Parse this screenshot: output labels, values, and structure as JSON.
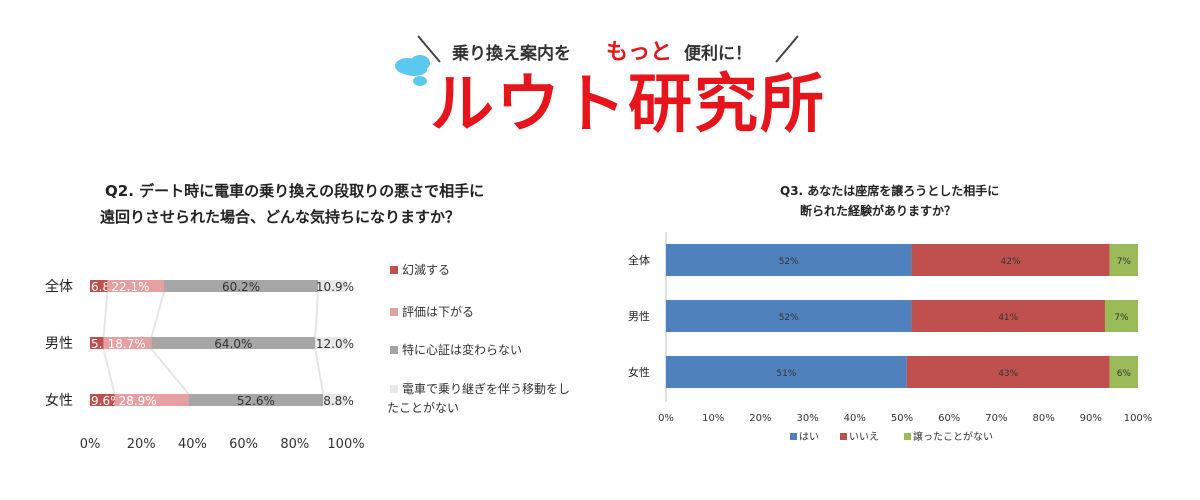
{
  "header": {
    "tagline_before": "乗り換え案内を",
    "tagline_emphasis": "もっと",
    "tagline_after": "便利に！",
    "logo": "ルウト研究所",
    "colors": {
      "brand_red": "#e8141c",
      "cloud_blue": "#5bc8f0"
    }
  },
  "chart_data": [
    {
      "type": "bar",
      "orientation": "horizontal-stacked",
      "title_line1": "Q2.  デート時に電車の乗り換えの段取りの悪さで相手に",
      "title_line2": "遠回りさせられた場合、どんな気持ちになりますか？",
      "categories": [
        "全体",
        "男性",
        "女性"
      ],
      "xlim": [
        0,
        100
      ],
      "xticks": [
        "0%",
        "20%",
        "40%",
        "60%",
        "80%",
        "100%"
      ],
      "legend_position": "right",
      "series": [
        {
          "name": "幻滅する",
          "color": "#c0504d",
          "values": [
            6.8,
            5.3,
            9.6
          ],
          "labels": [
            "6.8%",
            "5.3%",
            "9.6%"
          ]
        },
        {
          "name": "評価は下がる",
          "color": "#e6a0a0",
          "values": [
            22.1,
            18.7,
            28.9
          ],
          "labels": [
            "22.1%",
            "18.7%",
            "28.9%"
          ]
        },
        {
          "name": "特に心証は変わらない",
          "color": "#a6a6a6",
          "values": [
            60.2,
            64.0,
            52.6
          ],
          "labels": [
            "60.2%",
            "64.0%",
            "52.6%"
          ]
        },
        {
          "name": "電車で乗り継ぎを伴う移動をしたことがない",
          "name_line1": "電車で乗り継ぎを伴う移動をし",
          "name_line2": "たことがない",
          "color": "#e8e8e8",
          "values": [
            10.9,
            12.0,
            8.8
          ],
          "labels": [
            "10.9%",
            "12.0%",
            "8.8%"
          ]
        }
      ]
    },
    {
      "type": "bar",
      "orientation": "horizontal-stacked",
      "title_line1": "Q3.  あなたは座席を譲ろうとした相手に",
      "title_line2": "断られた経験がありますか？",
      "categories": [
        "全体",
        "男性",
        "女性"
      ],
      "xlim": [
        0,
        100
      ],
      "xticks": [
        "0%",
        "10%",
        "20%",
        "30%",
        "40%",
        "50%",
        "60%",
        "70%",
        "80%",
        "90%",
        "100%"
      ],
      "legend_position": "bottom",
      "series": [
        {
          "name": "はい",
          "color": "#4f81bd",
          "values": [
            52,
            52,
            51
          ],
          "labels": [
            "52%",
            "52%",
            "51%"
          ]
        },
        {
          "name": "いいえ",
          "color": "#c0504d",
          "values": [
            42,
            41,
            43
          ],
          "labels": [
            "42%",
            "41%",
            "43%"
          ]
        },
        {
          "name": "譲ったことがない",
          "color": "#9bbb59",
          "values": [
            7,
            7,
            6
          ],
          "labels": [
            "7%",
            "7%",
            "6%"
          ]
        }
      ]
    }
  ]
}
